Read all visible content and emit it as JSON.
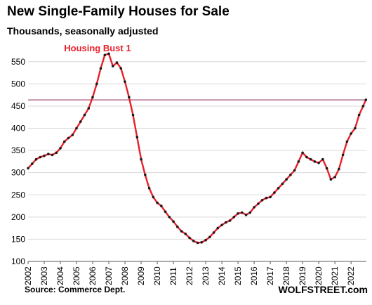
{
  "title": "New Single-Family Houses for Sale",
  "subtitle": "Thousands, seasonally adjusted",
  "source": "Source: Commerce Dept.",
  "brand": "WOLFSTREET.com",
  "colors": {
    "line": "#e8202a",
    "markers": "#1a1a1a",
    "refline": "#8b1a4a",
    "grid": "#d9d9d9",
    "annotation": "#e8202a"
  },
  "chart_data": {
    "type": "line",
    "title": "New Single-Family Houses for Sale",
    "subtitle": "Thousands, seasonally adjusted",
    "ylim": [
      100,
      575
    ],
    "yticks": [
      100,
      150,
      200,
      250,
      300,
      350,
      400,
      450,
      500,
      550
    ],
    "xlim": [
      2002,
      2022.95
    ],
    "xticks": [
      "2002",
      "2003",
      "2004",
      "2005",
      "2006",
      "2007",
      "2008",
      "2009",
      "2010",
      "2011",
      "2012",
      "2013",
      "2014",
      "2015",
      "2016",
      "2017",
      "2018",
      "2019",
      "2020",
      "2021",
      "2022"
    ],
    "grid": "horizontal",
    "reference_line": {
      "y": 464
    },
    "annotations": [
      {
        "text": "Housing Bust 1",
        "x": 2006.3,
        "y": 580
      }
    ],
    "series": [
      {
        "points": [
          [
            2002.0,
            310
          ],
          [
            2002.25,
            320
          ],
          [
            2002.5,
            330
          ],
          [
            2002.75,
            335
          ],
          [
            2003.0,
            338
          ],
          [
            2003.25,
            342
          ],
          [
            2003.5,
            340
          ],
          [
            2003.75,
            345
          ],
          [
            2004.0,
            355
          ],
          [
            2004.25,
            370
          ],
          [
            2004.5,
            378
          ],
          [
            2004.75,
            385
          ],
          [
            2005.0,
            400
          ],
          [
            2005.25,
            415
          ],
          [
            2005.5,
            430
          ],
          [
            2005.75,
            445
          ],
          [
            2006.0,
            470
          ],
          [
            2006.25,
            500
          ],
          [
            2006.5,
            535
          ],
          [
            2006.75,
            565
          ],
          [
            2007.0,
            568
          ],
          [
            2007.25,
            540
          ],
          [
            2007.5,
            548
          ],
          [
            2007.75,
            535
          ],
          [
            2008.0,
            505
          ],
          [
            2008.25,
            470
          ],
          [
            2008.5,
            430
          ],
          [
            2008.75,
            380
          ],
          [
            2009.0,
            330
          ],
          [
            2009.25,
            295
          ],
          [
            2009.5,
            265
          ],
          [
            2009.75,
            245
          ],
          [
            2010.0,
            232
          ],
          [
            2010.25,
            225
          ],
          [
            2010.5,
            212
          ],
          [
            2010.75,
            200
          ],
          [
            2011.0,
            190
          ],
          [
            2011.25,
            178
          ],
          [
            2011.5,
            168
          ],
          [
            2011.75,
            162
          ],
          [
            2012.0,
            153
          ],
          [
            2012.25,
            146
          ],
          [
            2012.5,
            142
          ],
          [
            2012.75,
            143
          ],
          [
            2013.0,
            148
          ],
          [
            2013.25,
            155
          ],
          [
            2013.5,
            165
          ],
          [
            2013.75,
            175
          ],
          [
            2014.0,
            182
          ],
          [
            2014.25,
            188
          ],
          [
            2014.5,
            192
          ],
          [
            2014.75,
            200
          ],
          [
            2015.0,
            208
          ],
          [
            2015.25,
            210
          ],
          [
            2015.5,
            205
          ],
          [
            2015.75,
            210
          ],
          [
            2016.0,
            222
          ],
          [
            2016.25,
            230
          ],
          [
            2016.5,
            238
          ],
          [
            2016.75,
            243
          ],
          [
            2017.0,
            245
          ],
          [
            2017.25,
            255
          ],
          [
            2017.5,
            265
          ],
          [
            2017.75,
            275
          ],
          [
            2018.0,
            285
          ],
          [
            2018.25,
            295
          ],
          [
            2018.5,
            305
          ],
          [
            2018.75,
            325
          ],
          [
            2019.0,
            345
          ],
          [
            2019.25,
            335
          ],
          [
            2019.5,
            330
          ],
          [
            2019.75,
            325
          ],
          [
            2020.0,
            322
          ],
          [
            2020.25,
            330
          ],
          [
            2020.5,
            310
          ],
          [
            2020.75,
            285
          ],
          [
            2021.0,
            290
          ],
          [
            2021.25,
            308
          ],
          [
            2021.5,
            340
          ],
          [
            2021.75,
            370
          ],
          [
            2022.0,
            388
          ],
          [
            2022.25,
            400
          ],
          [
            2022.5,
            430
          ],
          [
            2022.75,
            450
          ],
          [
            2022.92,
            464
          ]
        ]
      }
    ]
  }
}
